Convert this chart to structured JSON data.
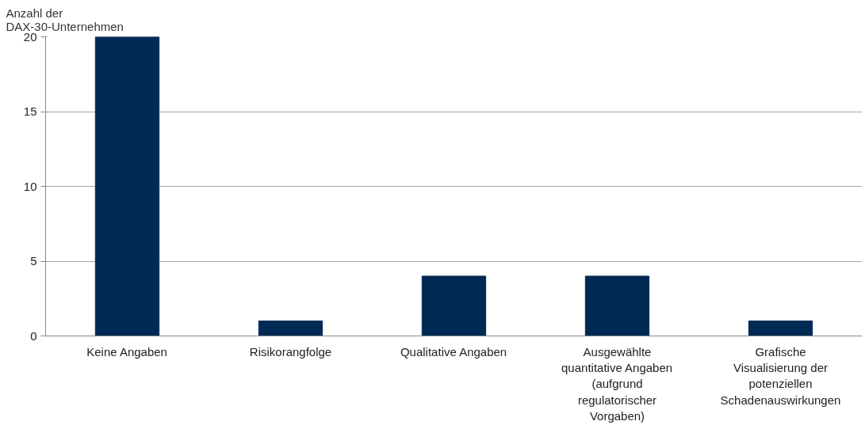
{
  "chart_data": {
    "type": "bar",
    "ylabel": "Anzahl der DAX-30-Unternehmen",
    "categories": [
      "Keine Angaben",
      "Risikorangfolge",
      "Qualitative Angaben",
      "Ausgewählte quantitative Angaben (aufgrund regulatorischer Vorgaben)",
      "Grafische Visualisierung der potenziellen Schadenauswirkungen"
    ],
    "values": [
      20,
      1,
      4,
      4,
      1
    ],
    "color": "#002a54",
    "ylim": [
      0,
      20
    ],
    "yticks": [
      0,
      5,
      10,
      15,
      20
    ],
    "grid": "y"
  }
}
